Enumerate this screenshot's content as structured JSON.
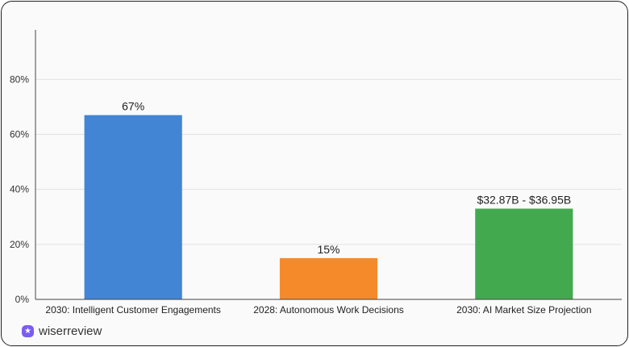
{
  "chart_data": {
    "type": "bar",
    "categories": [
      "2030: Intelligent Customer Engagements",
      "2028: Autonomous Work Decisions",
      "2030: AI Market Size Projection"
    ],
    "values": [
      67,
      15,
      33
    ],
    "data_labels": [
      "67%",
      "15%",
      "$32.87B - $36.95B"
    ],
    "colors": [
      "#4285d4",
      "#f58a2a",
      "#43a94f"
    ],
    "title": "",
    "xlabel": "",
    "ylabel": "",
    "ylim": [
      0,
      98
    ],
    "yticks": [
      0,
      20,
      40,
      60,
      80
    ],
    "ytick_labels": [
      "0%",
      "20%",
      "40%",
      "60%",
      "80%"
    ],
    "grid": true
  },
  "brand": {
    "name": "wiserreview",
    "icon": "star-badge-icon",
    "color": "#7b5cf0"
  }
}
